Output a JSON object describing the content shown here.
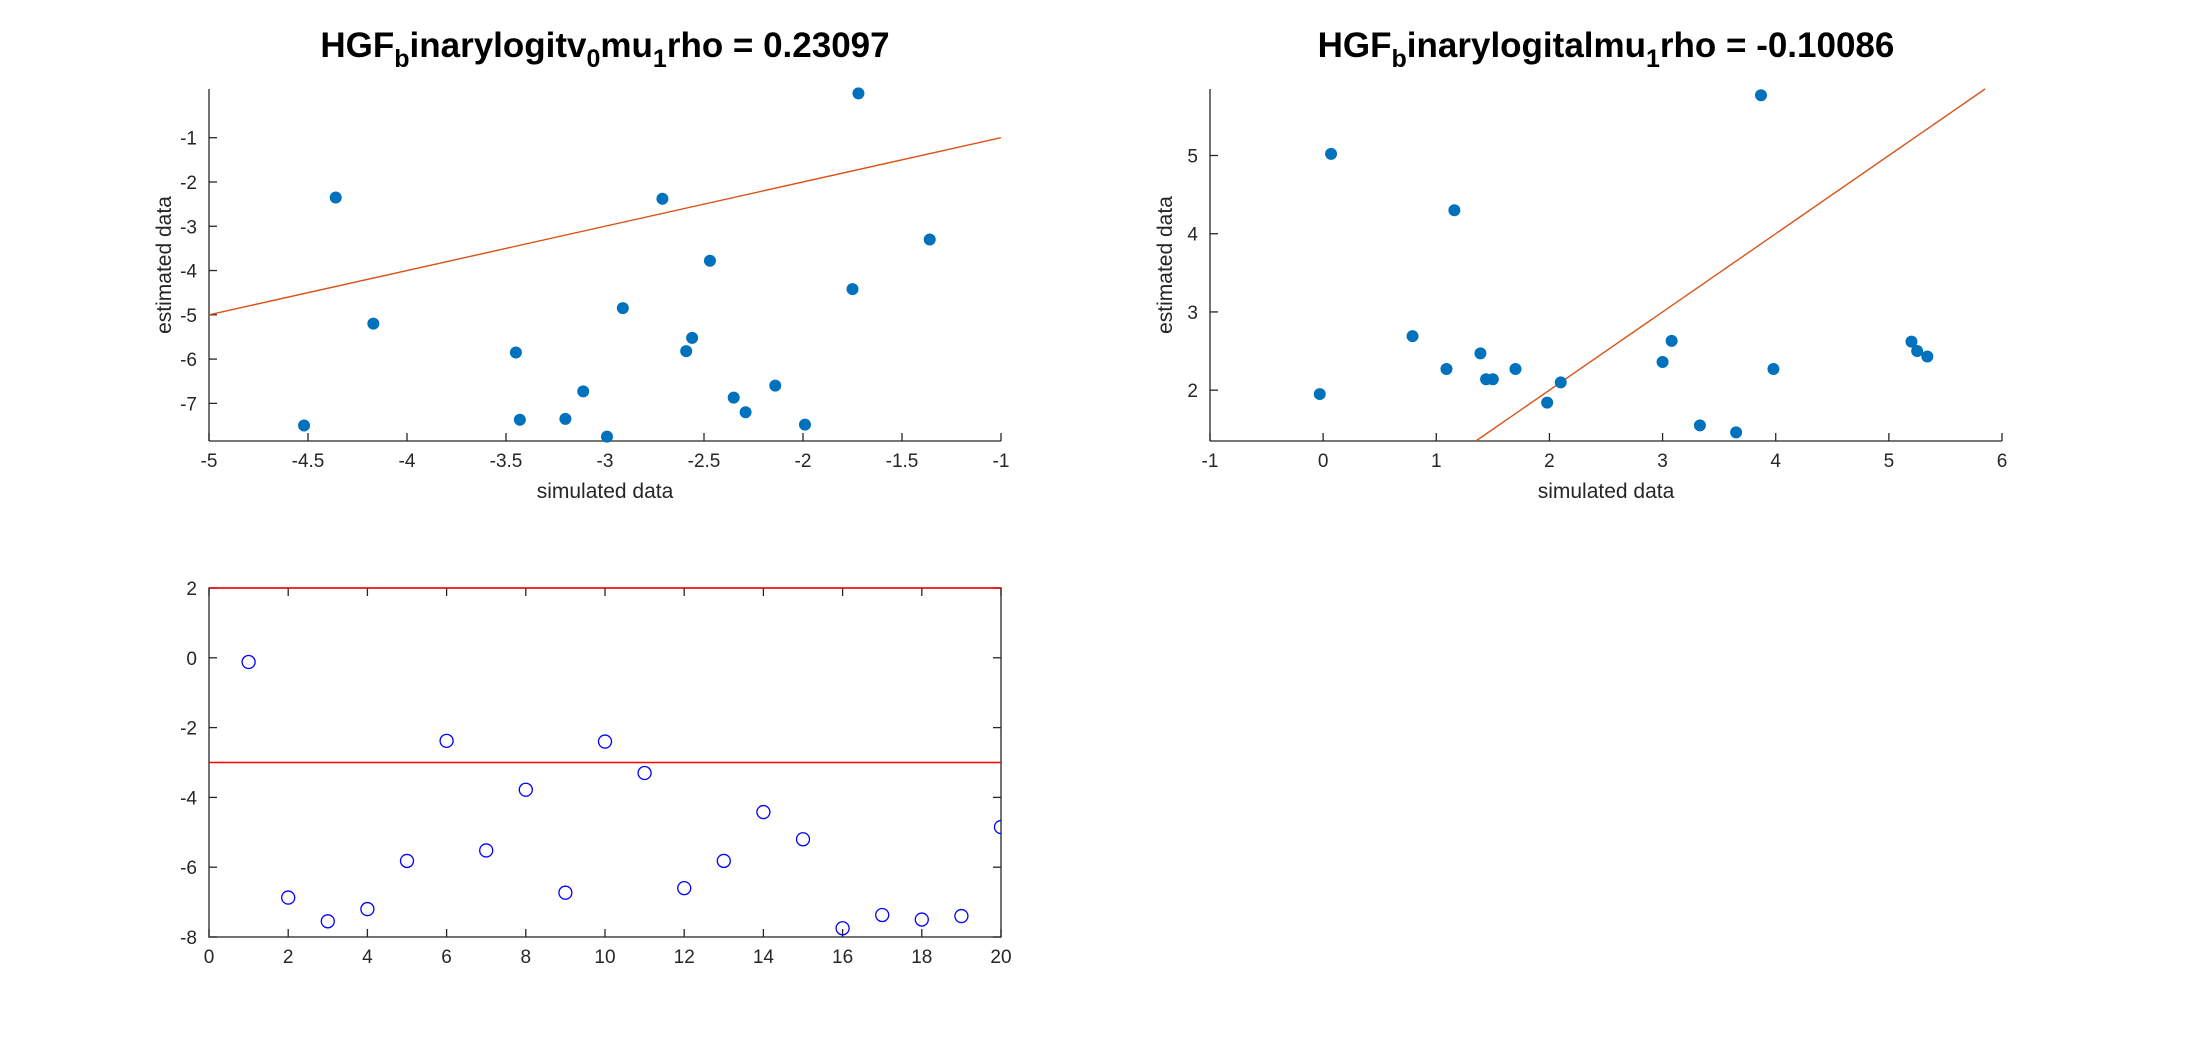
{
  "chart_data": [
    {
      "type": "scatter",
      "title": {
        "parts": [
          {
            "text": "HGF",
            "sub": false
          },
          {
            "text": "b",
            "sub": true
          },
          {
            "text": "inarylogitv",
            "sub": false
          },
          {
            "text": "0",
            "sub": true
          },
          {
            "text": "mu",
            "sub": false
          },
          {
            "text": "1",
            "sub": true
          },
          {
            "text": "rho = 0.23097",
            "sub": false
          }
        ]
      },
      "xlabel": "simulated data",
      "ylabel": "estimated data",
      "xlim": [
        -5,
        -1
      ],
      "ylim": [
        -7.85,
        0.1
      ],
      "xticks": [
        -5,
        -4.5,
        -4,
        -3.5,
        -3,
        -2.5,
        -2,
        -1.5,
        -1
      ],
      "yticks": [
        -7,
        -6,
        -5,
        -4,
        -3,
        -2,
        -1
      ],
      "grid": false,
      "marker_color": "#0072BD",
      "line_color": "#D95319",
      "points": [
        {
          "x": -4.52,
          "y": -7.5
        },
        {
          "x": -4.36,
          "y": -2.35
        },
        {
          "x": -4.17,
          "y": -5.2
        },
        {
          "x": -3.45,
          "y": -5.85
        },
        {
          "x": -3.43,
          "y": -7.37
        },
        {
          "x": -3.2,
          "y": -7.35
        },
        {
          "x": -3.11,
          "y": -6.73
        },
        {
          "x": -2.99,
          "y": -7.75
        },
        {
          "x": -2.91,
          "y": -4.85
        },
        {
          "x": -2.71,
          "y": -2.38
        },
        {
          "x": -2.59,
          "y": -5.82
        },
        {
          "x": -2.56,
          "y": -5.52
        },
        {
          "x": -2.47,
          "y": -3.78
        },
        {
          "x": -2.35,
          "y": -6.87
        },
        {
          "x": -2.29,
          "y": -7.2
        },
        {
          "x": -2.14,
          "y": -6.6
        },
        {
          "x": -1.99,
          "y": -7.48
        },
        {
          "x": -1.75,
          "y": -4.42
        },
        {
          "x": -1.72,
          "y": 0.0
        },
        {
          "x": -1.36,
          "y": -3.3
        }
      ],
      "line": {
        "x": [
          -5,
          -1
        ],
        "y": [
          -5,
          -1
        ]
      }
    },
    {
      "type": "scatter",
      "title": {
        "parts": [
          {
            "text": "HGF",
            "sub": false
          },
          {
            "text": "b",
            "sub": true
          },
          {
            "text": "inarylogitalmu",
            "sub": false
          },
          {
            "text": "1",
            "sub": true
          },
          {
            "text": "rho = -0.10086",
            "sub": false
          }
        ]
      },
      "xlabel": "simulated data",
      "ylabel": "estimated data",
      "xlim": [
        -1,
        6
      ],
      "ylim": [
        1.35,
        5.85
      ],
      "xticks": [
        -1,
        0,
        1,
        2,
        3,
        4,
        5,
        6
      ],
      "yticks": [
        2,
        3,
        4,
        5
      ],
      "grid": false,
      "marker_color": "#0072BD",
      "line_color": "#D95319",
      "points": [
        {
          "x": -0.03,
          "y": 1.95
        },
        {
          "x": 0.07,
          "y": 5.02
        },
        {
          "x": 0.79,
          "y": 2.69
        },
        {
          "x": 1.09,
          "y": 2.27
        },
        {
          "x": 1.16,
          "y": 4.3
        },
        {
          "x": 1.39,
          "y": 2.47
        },
        {
          "x": 1.44,
          "y": 2.14
        },
        {
          "x": 1.5,
          "y": 2.14
        },
        {
          "x": 1.7,
          "y": 2.27
        },
        {
          "x": 1.98,
          "y": 1.84
        },
        {
          "x": 2.1,
          "y": 2.1
        },
        {
          "x": 3.0,
          "y": 2.36
        },
        {
          "x": 3.08,
          "y": 2.63
        },
        {
          "x": 3.33,
          "y": 1.55
        },
        {
          "x": 3.65,
          "y": 1.46
        },
        {
          "x": 3.87,
          "y": 5.77
        },
        {
          "x": 3.98,
          "y": 2.27
        },
        {
          "x": 5.2,
          "y": 2.62
        },
        {
          "x": 5.25,
          "y": 2.5
        },
        {
          "x": 5.34,
          "y": 2.43
        }
      ],
      "line": {
        "x": [
          1.35,
          5.85
        ],
        "y": [
          1.35,
          5.85
        ]
      }
    },
    {
      "type": "scatter",
      "title": "",
      "xlabel": "",
      "ylabel": "",
      "xlim": [
        0,
        20
      ],
      "ylim": [
        -8,
        2
      ],
      "xticks": [
        0,
        2,
        4,
        6,
        8,
        10,
        12,
        14,
        16,
        18,
        20
      ],
      "yticks": [
        -8,
        -6,
        -4,
        -2,
        0,
        2
      ],
      "grid": false,
      "marker_style": "open-circle",
      "marker_color": "#0000FF",
      "hline_color": "#FF0000",
      "hlines": [
        2,
        -3
      ],
      "points": [
        {
          "x": 1,
          "y": -0.12
        },
        {
          "x": 2,
          "y": -6.87
        },
        {
          "x": 3,
          "y": -7.55
        },
        {
          "x": 4,
          "y": -7.2
        },
        {
          "x": 5,
          "y": -5.82
        },
        {
          "x": 6,
          "y": -2.38
        },
        {
          "x": 7,
          "y": -5.52
        },
        {
          "x": 8,
          "y": -3.78
        },
        {
          "x": 9,
          "y": -6.73
        },
        {
          "x": 10,
          "y": -2.4
        },
        {
          "x": 11,
          "y": -3.3
        },
        {
          "x": 12,
          "y": -6.6
        },
        {
          "x": 13,
          "y": -5.82
        },
        {
          "x": 14,
          "y": -4.42
        },
        {
          "x": 15,
          "y": -5.2
        },
        {
          "x": 16,
          "y": -7.75
        },
        {
          "x": 17,
          "y": -7.37
        },
        {
          "x": 18,
          "y": -7.5
        },
        {
          "x": 19,
          "y": -7.4
        },
        {
          "x": 20,
          "y": -4.85
        }
      ]
    }
  ]
}
